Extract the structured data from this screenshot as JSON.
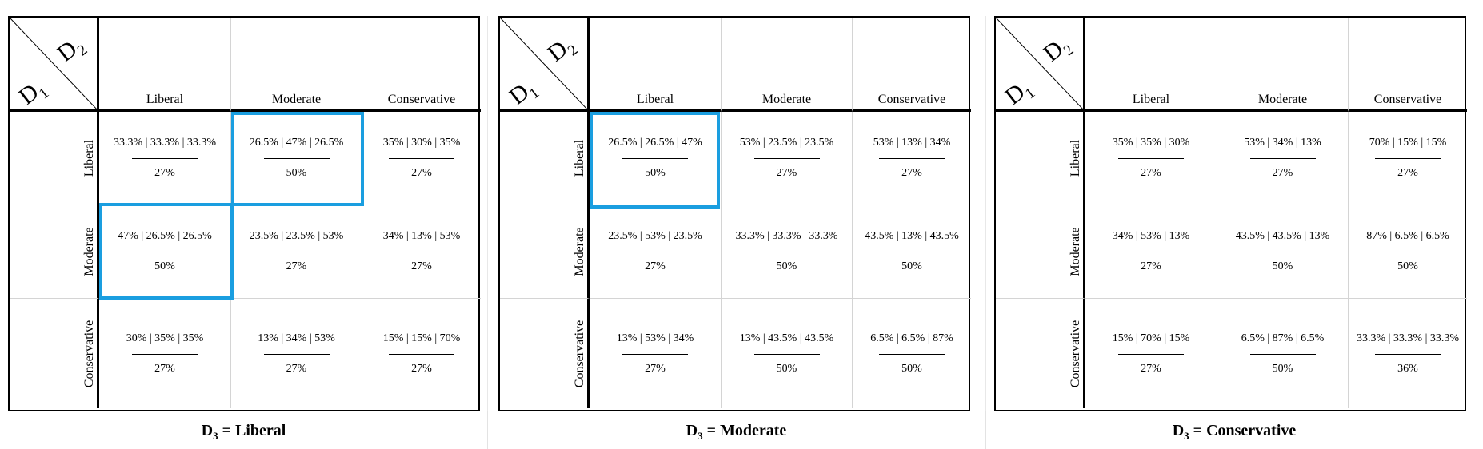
{
  "corner": {
    "d1": "D",
    "d1_sub": "1",
    "d2": "D",
    "d2_sub": "2"
  },
  "columns": [
    "Liberal",
    "Moderate",
    "Conservative"
  ],
  "rows": [
    "Liberal",
    "Moderate",
    "Conservative"
  ],
  "panels": [
    {
      "caption_var": "D",
      "caption_sub": "3",
      "caption_rest": " = Liberal",
      "cells": [
        [
          {
            "dist": "33.3% | 33.3% | 33.3%",
            "prob": "27%"
          },
          {
            "dist": "26.5% | 47% | 26.5%",
            "prob": "50%"
          },
          {
            "dist": "35% | 30% | 35%",
            "prob": "27%"
          }
        ],
        [
          {
            "dist": "47% | 26.5% | 26.5%",
            "prob": "50%"
          },
          {
            "dist": "23.5% | 23.5% | 53%",
            "prob": "27%"
          },
          {
            "dist": "34% | 13% | 53%",
            "prob": "27%"
          }
        ],
        [
          {
            "dist": "30% | 35% | 35%",
            "prob": "27%"
          },
          {
            "dist": "13% | 34% | 53%",
            "prob": "27%"
          },
          {
            "dist": "15% | 15% | 70%",
            "prob": "27%"
          }
        ]
      ]
    },
    {
      "caption_var": "D",
      "caption_sub": "3",
      "caption_rest": " = Moderate",
      "cells": [
        [
          {
            "dist": "26.5% | 26.5% | 47%",
            "prob": "50%"
          },
          {
            "dist": "53% | 23.5% | 23.5%",
            "prob": "27%"
          },
          {
            "dist": "53% | 13% | 34%",
            "prob": "27%"
          }
        ],
        [
          {
            "dist": "23.5% | 53% | 23.5%",
            "prob": "27%"
          },
          {
            "dist": "33.3% | 33.3% | 33.3%",
            "prob": "50%"
          },
          {
            "dist": "43.5% | 13% | 43.5%",
            "prob": "50%"
          }
        ],
        [
          {
            "dist": "13% | 53% | 34%",
            "prob": "27%"
          },
          {
            "dist": "13% | 43.5% | 43.5%",
            "prob": "50%"
          },
          {
            "dist": "6.5% | 6.5% | 87%",
            "prob": "50%"
          }
        ]
      ]
    },
    {
      "caption_var": "D",
      "caption_sub": "3",
      "caption_rest": " = Conservative",
      "cells": [
        [
          {
            "dist": "35% | 35% | 30%",
            "prob": "27%"
          },
          {
            "dist": "53% | 34% | 13%",
            "prob": "27%"
          },
          {
            "dist": "70% | 15% | 15%",
            "prob": "27%"
          }
        ],
        [
          {
            "dist": "34% | 53% | 13%",
            "prob": "27%"
          },
          {
            "dist": "43.5% | 43.5% | 13%",
            "prob": "50%"
          },
          {
            "dist": "87% | 6.5% | 6.5%",
            "prob": "50%"
          }
        ],
        [
          {
            "dist": "15% | 70% | 15%",
            "prob": "27%"
          },
          {
            "dist": "6.5% | 87% | 6.5%",
            "prob": "50%"
          },
          {
            "dist": "33.3% | 33.3% | 33.3%",
            "prob": "36%"
          }
        ]
      ]
    }
  ],
  "highlight_color": "#1a9ee0"
}
